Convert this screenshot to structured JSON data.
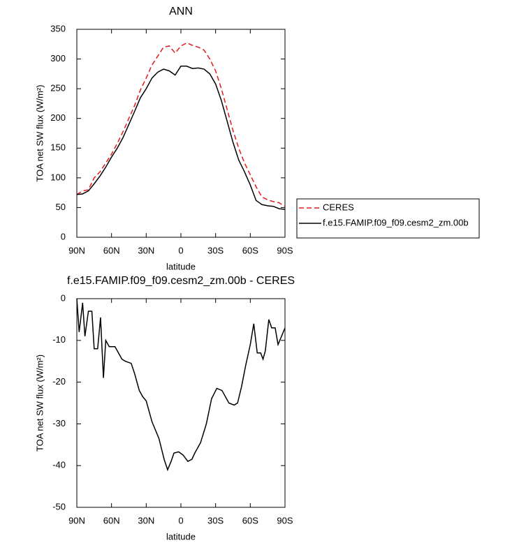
{
  "chart_data": [
    {
      "type": "line",
      "title": "ANN",
      "x_label": "latitude",
      "y_label": "TOA net SW flux (W/m²)",
      "x": [
        90,
        85,
        80,
        75,
        70,
        65,
        60,
        55,
        50,
        45,
        40,
        35,
        30,
        25,
        20,
        15,
        10,
        5,
        0,
        -5,
        -10,
        -15,
        -20,
        -25,
        -30,
        -35,
        -40,
        -45,
        -50,
        -55,
        -60,
        -65,
        -70,
        -75,
        -80,
        -85,
        -90
      ],
      "series": [
        {
          "name": "CERES",
          "color": "#e41a1c",
          "dash": true,
          "values": [
            72,
            78,
            80,
            100,
            110,
            125,
            140,
            158,
            178,
            200,
            222,
            248,
            268,
            290,
            305,
            320,
            322,
            310,
            322,
            327,
            323,
            320,
            315,
            300,
            280,
            250,
            215,
            180,
            150,
            125,
            105,
            85,
            68,
            63,
            60,
            58,
            52
          ]
        },
        {
          "name": "f.e15.FAMIP.f09_f09.cesm2_zm.00b",
          "color": "#000000",
          "dash": false,
          "values": [
            72,
            73,
            78,
            90,
            103,
            118,
            135,
            150,
            168,
            190,
            212,
            235,
            250,
            268,
            278,
            283,
            280,
            273,
            288,
            288,
            284,
            285,
            283,
            275,
            258,
            230,
            195,
            160,
            130,
            110,
            88,
            62,
            55,
            53,
            52,
            48,
            47
          ]
        }
      ],
      "xlim": [
        90,
        -90
      ],
      "xticks": [
        {
          "value": 90,
          "label": "90N"
        },
        {
          "value": 60,
          "label": "60N"
        },
        {
          "value": 30,
          "label": "30N"
        },
        0,
        {
          "value": -30,
          "label": "30S"
        },
        {
          "value": -60,
          "label": "60S"
        },
        {
          "value": -90,
          "label": "90S"
        }
      ],
      "ylim": [
        0,
        350
      ],
      "yticks": [
        0,
        50,
        100,
        150,
        200,
        250,
        300,
        350
      ],
      "legend": "right"
    },
    {
      "type": "line",
      "title": "f.e15.FAMIP.f09_f09.cesm2_zm.00b - CERES",
      "x_label": "latitude",
      "y_label": "TOA net SW flux (W/m²)",
      "x": [
        90,
        88,
        85,
        83,
        80,
        77,
        75,
        72,
        69.5,
        67,
        65,
        62,
        57,
        51,
        48,
        43,
        40,
        36,
        33,
        30,
        25,
        19,
        14.5,
        11.5,
        8.5,
        6,
        2,
        -2,
        -6,
        -9.5,
        -12,
        -17,
        -22,
        -26.5,
        -31,
        -35.5,
        -38.5,
        -41.5,
        -46,
        -49,
        -52.5,
        -56,
        -60,
        -63,
        -66,
        -69,
        -71,
        -73,
        -76,
        -78.5,
        -81.5,
        -84,
        -90
      ],
      "values": [
        0,
        -8,
        -1,
        -9,
        -3,
        -3,
        -12,
        -12,
        -4.5,
        -19,
        -10,
        -11.5,
        -11.5,
        -14.5,
        -15,
        -15.5,
        -18,
        -22,
        -23.5,
        -24.5,
        -29.5,
        -33.5,
        -38.5,
        -41,
        -39,
        -37,
        -36.7,
        -37.5,
        -39,
        -38.5,
        -37,
        -34.5,
        -30,
        -24,
        -21.5,
        -22,
        -23.5,
        -25,
        -25.5,
        -25,
        -21,
        -16,
        -11,
        -6,
        -13,
        -13,
        -14.5,
        -12.5,
        -5,
        -7,
        -7,
        -11,
        -7
      ],
      "color": "#000000",
      "xlim": [
        90,
        -90
      ],
      "xticks": [
        {
          "value": 90,
          "label": "90N"
        },
        {
          "value": 60,
          "label": "60N"
        },
        {
          "value": 30,
          "label": "30N"
        },
        0,
        {
          "value": -30,
          "label": "30S"
        },
        {
          "value": -60,
          "label": "60S"
        },
        {
          "value": -90,
          "label": "90S"
        }
      ],
      "ylim": [
        -50,
        0
      ],
      "yticks": [
        -50,
        -40,
        -30,
        -20,
        -10,
        0
      ]
    }
  ]
}
